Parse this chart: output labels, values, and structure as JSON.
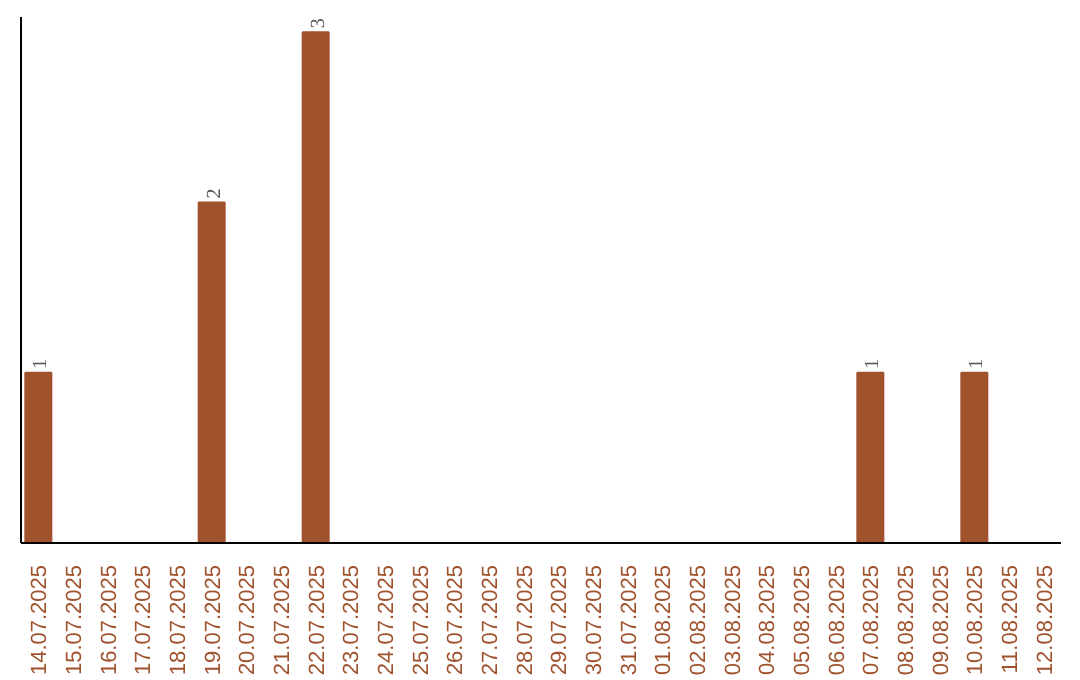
{
  "chart_data": {
    "type": "bar",
    "categories": [
      "14.07.2025",
      "15.07.2025",
      "16.07.2025",
      "17.07.2025",
      "18.07.2025",
      "19.07.2025",
      "20.07.2025",
      "21.07.2025",
      "22.07.2025",
      "23.07.2025",
      "24.07.2025",
      "25.07.2025",
      "26.07.2025",
      "27.07.2025",
      "28.07.2025",
      "29.07.2025",
      "30.07.2025",
      "31.07.2025",
      "01.08.2025",
      "02.08.2025",
      "03.08.2025",
      "04.08.2025",
      "05.08.2025",
      "06.08.2025",
      "07.08.2025",
      "08.08.2025",
      "09.08.2025",
      "10.08.2025",
      "11.08.2025",
      "12.08.2025"
    ],
    "values": [
      1,
      0,
      0,
      0,
      0,
      2,
      0,
      0,
      3,
      0,
      0,
      0,
      0,
      0,
      0,
      0,
      0,
      0,
      0,
      0,
      0,
      0,
      0,
      0,
      1,
      0,
      0,
      1,
      0,
      0
    ],
    "value_labels": [
      "1",
      null,
      null,
      null,
      null,
      "2",
      null,
      null,
      "3",
      null,
      null,
      null,
      null,
      null,
      null,
      null,
      null,
      null,
      null,
      null,
      null,
      null,
      null,
      null,
      "1",
      null,
      null,
      "1",
      null,
      null
    ],
    "color": "#a0522d"
  }
}
